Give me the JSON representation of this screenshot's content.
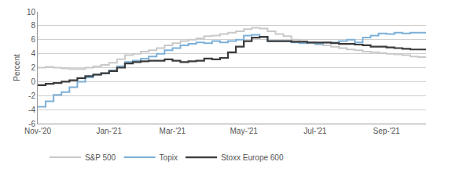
{
  "chart_data": {
    "type": "line",
    "line_style": "step",
    "y_label": "Percent",
    "categories": [
      "Nov-'20",
      null,
      null,
      null,
      null,
      null,
      null,
      null,
      null,
      "Jan-'21",
      null,
      null,
      null,
      null,
      null,
      null,
      null,
      "Mar-'21",
      null,
      null,
      null,
      null,
      null,
      null,
      null,
      null,
      "May-'21",
      null,
      null,
      null,
      null,
      null,
      null,
      null,
      null,
      "Jul-'21",
      null,
      null,
      null,
      null,
      null,
      null,
      null,
      null,
      "Sep-'21",
      null,
      null,
      null,
      null,
      null
    ],
    "series": [
      {
        "name": "S&P 500",
        "color": "#c9c9c9",
        "values": [
          2.0,
          2.1,
          2.0,
          1.9,
          1.8,
          1.8,
          2.0,
          2.2,
          2.4,
          2.7,
          3.2,
          3.8,
          4.0,
          4.3,
          4.5,
          4.8,
          5.2,
          5.5,
          5.8,
          6.0,
          6.2,
          6.5,
          6.6,
          6.8,
          7.0,
          7.2,
          7.5,
          7.7,
          7.6,
          7.2,
          6.8,
          6.5,
          6.0,
          5.8,
          5.5,
          5.3,
          5.2,
          5.0,
          4.8,
          4.6,
          4.5,
          4.3,
          4.2,
          4.1,
          4.0,
          3.9,
          3.8,
          3.6,
          3.5,
          3.5
        ]
      },
      {
        "name": "Topix",
        "color": "#7cb0d8",
        "values": [
          -3.6,
          -2.8,
          -1.9,
          -1.5,
          -0.8,
          0.0,
          0.6,
          1.0,
          1.2,
          1.6,
          2.2,
          2.8,
          3.0,
          3.3,
          3.6,
          4.0,
          4.5,
          4.8,
          5.2,
          5.4,
          5.6,
          5.5,
          5.8,
          5.6,
          5.8,
          6.0,
          6.6,
          6.7,
          6.4,
          5.8,
          5.8,
          5.8,
          5.6,
          5.5,
          5.6,
          5.4,
          5.6,
          5.6,
          5.8,
          6.0,
          5.6,
          6.3,
          6.6,
          6.9,
          6.8,
          7.0,
          6.9,
          7.0,
          7.0,
          7.0
        ]
      },
      {
        "name": "Stoxx Europe 600",
        "color": "#3b3b3b",
        "values": [
          -0.5,
          -0.3,
          -0.2,
          0.0,
          0.2,
          0.5,
          0.8,
          1.0,
          1.2,
          1.5,
          2.0,
          2.6,
          2.8,
          2.9,
          3.0,
          3.0,
          3.2,
          3.0,
          2.8,
          2.9,
          3.0,
          3.3,
          3.2,
          3.4,
          4.2,
          5.0,
          5.8,
          6.3,
          6.4,
          5.8,
          5.8,
          5.8,
          5.7,
          5.7,
          5.6,
          5.6,
          5.6,
          5.5,
          5.4,
          5.4,
          5.3,
          5.2,
          5.0,
          5.0,
          4.9,
          4.8,
          4.7,
          4.6,
          4.6,
          4.6
        ]
      }
    ],
    "ylim": [
      -6,
      10
    ],
    "yticks": [
      -6,
      -4,
      -2,
      0,
      2,
      4,
      6,
      8,
      10
    ],
    "grid": true,
    "legend": "bottom"
  }
}
